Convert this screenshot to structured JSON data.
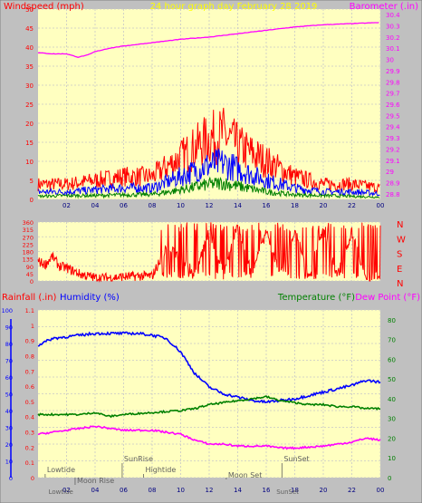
{
  "chart_data": [
    {
      "type": "line",
      "title": "24 hour graph day   February 28 2019",
      "ylabel_left": "Windspeed (mph)",
      "ylabel_right": "Barometer (.in)",
      "x_ticks": [
        "02",
        "04",
        "06",
        "08",
        "10",
        "12",
        "14",
        "16",
        "18",
        "20",
        "22",
        "00"
      ],
      "ylim_left": [
        0,
        50
      ],
      "yticks_left": [
        0,
        5,
        10,
        15,
        20,
        25,
        30,
        35,
        40,
        45,
        50
      ],
      "ylim_right": [
        28.75,
        30.45
      ],
      "yticks_right": [
        "28.8",
        "28.9",
        "29",
        "29.1",
        "29.2",
        "29.3",
        "29.4",
        "29.5",
        "29.6",
        "29.7",
        "29.8",
        "29.9",
        "30",
        "30.1",
        "30.2",
        "30.3",
        "30.4"
      ],
      "colors": {
        "gust": "#ff0000",
        "avg": "#0000ff",
        "low": "#008000",
        "barometer": "#ff00ff",
        "axis_left": "#ff0000",
        "axis_right": "#ff00ff",
        "title": "#ffff00"
      },
      "series": [
        {
          "hour": [
            0,
            2,
            4,
            6,
            8,
            10,
            12,
            13,
            14,
            16,
            18,
            20,
            22,
            24
          ],
          "values": [
            4,
            4,
            5,
            6,
            6,
            11,
            16,
            17,
            14,
            10,
            6,
            4,
            4,
            3
          ]
        },
        {
          "hour": [
            0,
            2,
            4,
            6,
            8,
            10,
            12,
            13,
            14,
            16,
            18,
            20,
            22,
            24
          ],
          "values": [
            2,
            2,
            2.5,
            3,
            3,
            6,
            9,
            9.5,
            8,
            5,
            3,
            2,
            2,
            1.5
          ]
        },
        {
          "hour": [
            0,
            2,
            4,
            6,
            8,
            10,
            12,
            13,
            14,
            16,
            18,
            20,
            22,
            24
          ],
          "values": [
            0.8,
            1,
            1,
            1.2,
            1.3,
            2.5,
            4,
            4.3,
            3.5,
            2,
            1.2,
            1,
            0.8,
            0.6
          ]
        },
        {
          "hour": [
            0,
            1,
            2,
            2.8,
            3.5,
            4,
            5,
            6,
            8,
            10,
            12,
            14,
            16,
            18,
            20,
            22,
            24
          ],
          "values": [
            30.06,
            30.05,
            30.05,
            30.02,
            30.04,
            30.07,
            30.1,
            30.12,
            30.15,
            30.18,
            30.2,
            30.23,
            30.26,
            30.29,
            30.31,
            30.32,
            30.33
          ]
        }
      ]
    },
    {
      "type": "line",
      "ylim": [
        0,
        360
      ],
      "yticks": [
        0,
        45,
        90,
        135,
        180,
        225,
        270,
        315,
        360
      ],
      "compass_labels": [
        "N",
        "W",
        "S",
        "E",
        "N"
      ],
      "x_ticks": [
        "02",
        "04",
        "06",
        "08",
        "10",
        "12",
        "14",
        "16",
        "18",
        "20",
        "22",
        "00"
      ],
      "colors": {
        "direction": "#ff0000",
        "axis": "#ff0000",
        "compass": "#ff0000"
      },
      "series": [
        {
          "hour": [
            0,
            0.5,
            1,
            1.5,
            2,
            2.5,
            3,
            3.5,
            4,
            5,
            6,
            7,
            8,
            9,
            10,
            11,
            12,
            13,
            14,
            15,
            16,
            17,
            18,
            19,
            20,
            21,
            22,
            23,
            24
          ],
          "values": [
            120,
            100,
            150,
            90,
            80,
            60,
            40,
            30,
            20,
            20,
            25,
            30,
            30,
            200,
            150,
            40,
            300,
            60,
            330,
            40,
            300,
            30,
            310,
            40,
            320,
            30,
            300,
            20,
            30
          ]
        }
      ]
    },
    {
      "type": "line",
      "ylabel_left_1": "Rainfall (.in)",
      "ylabel_left_2": "Humidity (%)",
      "ylabel_right_1": "Temperature (°F)",
      "ylabel_right_2": "Dew Point (°F)",
      "x_ticks": [
        "02",
        "04",
        "06",
        "08",
        "10",
        "12",
        "14",
        "16",
        "18",
        "20",
        "22",
        "00"
      ],
      "ylim_humidity": [
        0,
        100
      ],
      "yticks_humidity": [
        0,
        10,
        20,
        30,
        40,
        50,
        60,
        70,
        80,
        90,
        100
      ],
      "ylim_rain": [
        0,
        1.1
      ],
      "yticks_rain": [
        "0",
        "0.1",
        "0.2",
        "0.3",
        "0.4",
        "0.5",
        "0.6",
        "0.7",
        "0.8",
        "0.9",
        "1",
        "1.1"
      ],
      "ylim_temp": [
        0,
        85
      ],
      "yticks_temp": [
        0,
        10,
        20,
        30,
        40,
        50,
        60,
        70,
        80
      ],
      "colors": {
        "humidity": "#0000ff",
        "temperature": "#008000",
        "dew_point": "#ff00ff",
        "rain_axis": "#ff0000",
        "humidity_axis": "#0000ff",
        "temp_axis": "#008000",
        "dew_axis": "#ff00ff"
      },
      "series": [
        {
          "hour": [
            0,
            0.5,
            1,
            2,
            3,
            4,
            5,
            6,
            7,
            8,
            9,
            10,
            11,
            12,
            13,
            14,
            15,
            16,
            17,
            18,
            19,
            20,
            21,
            22,
            23,
            24
          ],
          "values": [
            79,
            81,
            83,
            84,
            85,
            86,
            86,
            86,
            86,
            85,
            83,
            75,
            62,
            54,
            50,
            48,
            46,
            45,
            46,
            47,
            49,
            51,
            53,
            55,
            58,
            57
          ]
        },
        {
          "hour": [
            0,
            2,
            3,
            4,
            5,
            6,
            8,
            10,
            11,
            12,
            13,
            14,
            15,
            16,
            17,
            18,
            19,
            20,
            21,
            22,
            23,
            24
          ],
          "values": [
            32,
            32,
            32,
            33,
            31,
            32,
            33,
            34,
            35,
            37,
            38,
            39,
            40,
            41,
            39,
            38,
            37,
            37,
            36,
            36,
            35,
            35
          ]
        },
        {
          "hour": [
            0,
            1,
            2,
            3,
            4,
            5,
            6,
            8,
            10,
            11,
            12,
            13,
            14,
            15,
            16,
            17,
            18,
            20,
            22,
            23,
            24
          ],
          "values": [
            22,
            23,
            24,
            25,
            26,
            25,
            24,
            24,
            22,
            19,
            17,
            17,
            16,
            16,
            16,
            15,
            15,
            16,
            18,
            20,
            19
          ]
        }
      ],
      "annotations": [
        "Lowtide",
        "Moon Rise",
        "SunRise",
        "Hightide",
        "Moon Set",
        "SunSet"
      ],
      "bottom_labels": [
        "Lowtide",
        "SunRise",
        "SunSet"
      ]
    }
  ]
}
